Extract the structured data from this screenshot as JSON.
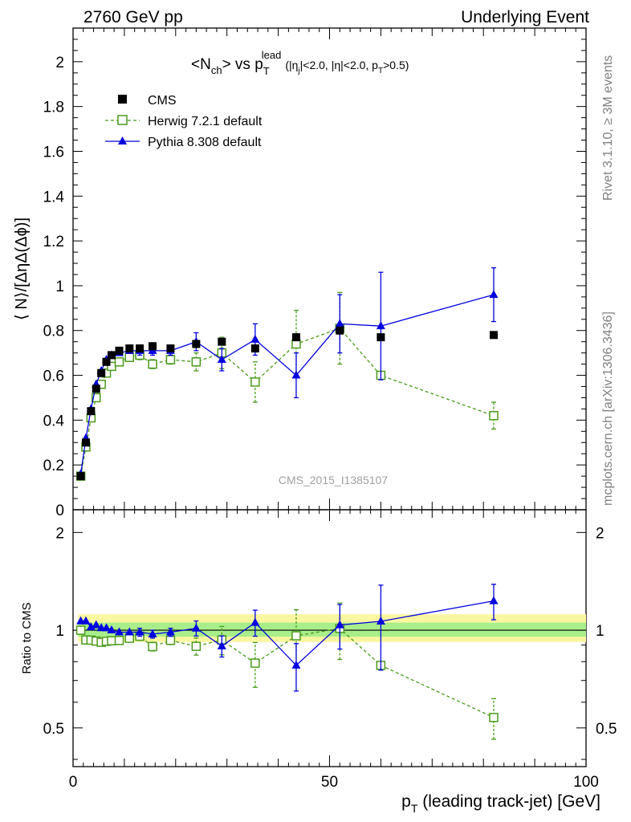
{
  "header": {
    "left": "2760 GeV pp",
    "right": "Underlying Event"
  },
  "side_labels": {
    "rivet": "Rivet 3.1.10, ≥ 3M events",
    "mcplots": "mcplots.cern.ch [arXiv:1306.3436]"
  },
  "watermark": "CMS_2015_I1385107",
  "chart_data": {
    "type": "line",
    "title": "<Nch> vs pT lead (|ηj|<2.0, |η|<2.0, pT>0.5)",
    "title_parts": {
      "a": "<N",
      "a_sub": "ch",
      "b": "> vs p",
      "b_sub": "T",
      "b_sup": "lead",
      "c": "(|η",
      "c_sub": "j",
      "d": "|<2.0, |η|<2.0, p",
      "d_sub": "T",
      "e": ">0.5)"
    },
    "ylabel": "⟨ N⟩/[ΔηΔ(Δϕ)]",
    "ylabel_ratio": "Ratio to CMS",
    "xlabel": "p",
    "xlabel_sub": "T",
    "xlabel_rest": " (leading track-jet) [GeV]",
    "xlim": [
      0,
      100
    ],
    "ylim": [
      0,
      2.15
    ],
    "ratio_ylim": [
      0.38,
      2.35
    ],
    "ratio_log": true,
    "x_ticks": [
      "0",
      "50",
      "100"
    ],
    "y_ticks": [
      "0",
      "0.2",
      "0.4",
      "0.6",
      "0.8",
      "1",
      "1.2",
      "1.4",
      "1.6",
      "1.8",
      "2"
    ],
    "ratio_ticks": [
      "0.5",
      "1",
      "2"
    ],
    "legend": [
      {
        "name": "CMS",
        "color": "#000000",
        "marker": "square"
      },
      {
        "name": "Herwig 7.2.1 default",
        "color": "#4a9a1a",
        "marker": "open-square"
      },
      {
        "name": "Pythia 8.308 default",
        "color": "#0000e0",
        "marker": "triangle"
      }
    ],
    "series": [
      {
        "name": "CMS",
        "x": [
          1.5,
          2.5,
          3.5,
          4.5,
          5.5,
          6.5,
          7.5,
          9.0,
          11.0,
          13.0,
          15.5,
          19.0,
          24.0,
          29.0,
          35.5,
          43.5,
          52.0,
          60.0,
          82.0
        ],
        "y": [
          0.15,
          0.3,
          0.44,
          0.54,
          0.61,
          0.66,
          0.69,
          0.71,
          0.72,
          0.72,
          0.73,
          0.72,
          0.74,
          0.75,
          0.72,
          0.77,
          0.8,
          0.77,
          0.78
        ]
      },
      {
        "name": "Herwig 7.2.1 default",
        "x": [
          1.5,
          2.5,
          3.5,
          4.5,
          5.5,
          6.5,
          7.5,
          9.0,
          11.0,
          13.0,
          15.5,
          19.0,
          24.0,
          29.0,
          35.5,
          43.5,
          52.0,
          60.0,
          82.0
        ],
        "y": [
          0.15,
          0.28,
          0.41,
          0.5,
          0.56,
          0.61,
          0.64,
          0.66,
          0.68,
          0.69,
          0.65,
          0.67,
          0.66,
          0.7,
          0.57,
          0.74,
          0.81,
          0.6,
          0.42
        ],
        "err": [
          0.005,
          0.01,
          0.01,
          0.01,
          0.01,
          0.01,
          0.01,
          0.01,
          0.01,
          0.02,
          0.02,
          0.02,
          0.04,
          0.07,
          0.09,
          0.15,
          0.16,
          0.01,
          0.06
        ]
      },
      {
        "name": "Pythia 8.308 default",
        "x": [
          1.5,
          2.5,
          3.5,
          4.5,
          5.5,
          6.5,
          7.5,
          9.0,
          11.0,
          13.0,
          15.5,
          19.0,
          24.0,
          29.0,
          35.5,
          43.5,
          52.0,
          60.0,
          82.0
        ],
        "y": [
          0.16,
          0.32,
          0.45,
          0.56,
          0.62,
          0.67,
          0.69,
          0.7,
          0.71,
          0.71,
          0.71,
          0.71,
          0.75,
          0.67,
          0.76,
          0.6,
          0.83,
          0.82,
          0.96
        ],
        "err": [
          0.005,
          0.01,
          0.01,
          0.01,
          0.01,
          0.01,
          0.01,
          0.01,
          0.01,
          0.02,
          0.02,
          0.02,
          0.04,
          0.05,
          0.07,
          0.1,
          0.13,
          0.24,
          0.12
        ]
      }
    ]
  }
}
